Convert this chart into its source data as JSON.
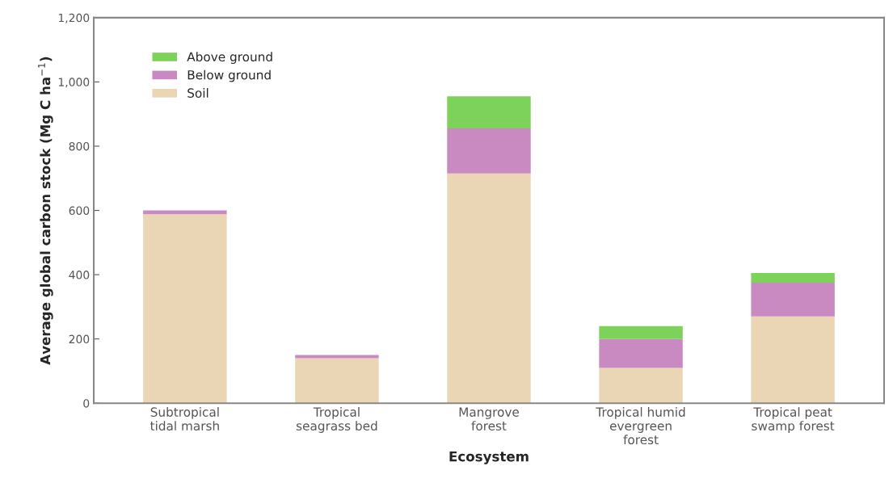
{
  "chart_data": {
    "type": "bar",
    "stacked": true,
    "xlabel": "Ecosystem",
    "ylabel": "Average global carbon stock (Mg C ha$^{−1}$)",
    "categories": [
      "Subtropical\ntidal marsh",
      "Tropical\nseagrass bed",
      "Mangrove\nforest",
      "Tropical humid\nevergreen\nforest",
      "Tropical peat\nswamp forest"
    ],
    "series": [
      {
        "name": "Soil",
        "color": "#ead6b5",
        "values": [
          588,
          140,
          715,
          110,
          270
        ]
      },
      {
        "name": "Below ground",
        "color": "#c88ac0",
        "values": [
          12,
          10,
          140,
          90,
          105
        ]
      },
      {
        "name": "Above ground",
        "color": "#7dd35a",
        "values": [
          null,
          null,
          100,
          40,
          30
        ]
      }
    ],
    "ylim": [
      0,
      1200
    ],
    "yticks": [
      0,
      200,
      400,
      600,
      800,
      {
        "value": 1000,
        "label": "1,000"
      },
      {
        "value": 1200,
        "label": "1,200"
      }
    ],
    "legend": "top left",
    "grid": false
  }
}
